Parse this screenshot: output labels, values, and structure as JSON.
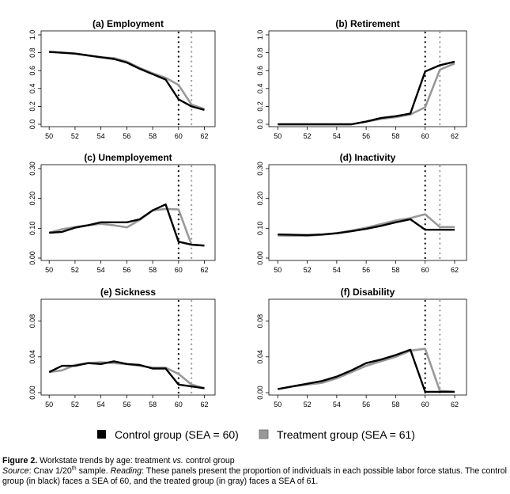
{
  "x_ticks": [
    "50",
    "52",
    "54",
    "56",
    "58",
    "60",
    "62"
  ],
  "colors": {
    "control": "#000000",
    "treatment": "#999999"
  },
  "legend": {
    "control_label": "Control group (SEA = 60)",
    "treatment_label": "Treatment group (SEA = 61)"
  },
  "caption": {
    "figure_label": "Figure 2.",
    "title_pre": "Workstate trends by age: treatment",
    "title_vs": "vs.",
    "title_post": "control group",
    "source_label": "Source",
    "source_pre": ": Cnav 1/20",
    "source_sup": "th",
    "source_post": "sample.",
    "reading_label": "Reading",
    "reading_text": ": These panels present the proportion of individuals in each possible labor force status. The control group (in black) faces a SEA of 60, and the treated group (in gray) faces a SEA of 61."
  },
  "chart_data": [
    {
      "type": "line",
      "title": "(a) Employment",
      "x": [
        50,
        51,
        52,
        53,
        54,
        55,
        56,
        57,
        58,
        59,
        60,
        61,
        62
      ],
      "ylim": [
        0,
        1
      ],
      "yticks": [
        "0.0",
        "0.2",
        "0.4",
        "0.6",
        "0.8",
        "1.0"
      ],
      "vlines": [
        60,
        61
      ],
      "series": [
        {
          "key": "control",
          "values": [
            0.81,
            0.8,
            0.79,
            0.77,
            0.75,
            0.73,
            0.69,
            0.62,
            0.56,
            0.5,
            0.28,
            0.2,
            0.16
          ]
        },
        {
          "key": "treatment",
          "values": [
            0.81,
            0.8,
            0.79,
            0.77,
            0.75,
            0.74,
            0.7,
            0.63,
            0.57,
            0.52,
            0.44,
            0.22,
            0.17
          ]
        }
      ]
    },
    {
      "type": "line",
      "title": "(b) Retirement",
      "x": [
        50,
        51,
        52,
        53,
        54,
        55,
        56,
        57,
        58,
        59,
        60,
        61,
        62
      ],
      "ylim": [
        0,
        1
      ],
      "yticks": [
        "0.0",
        "0.2",
        "0.4",
        "0.6",
        "0.8",
        "1.0"
      ],
      "vlines": [
        60,
        61
      ],
      "series": [
        {
          "key": "control",
          "values": [
            0.0,
            0.0,
            0.0,
            0.0,
            0.0,
            0.0,
            0.03,
            0.07,
            0.09,
            0.12,
            0.59,
            0.66,
            0.7
          ]
        },
        {
          "key": "treatment",
          "values": [
            0.0,
            0.0,
            0.0,
            0.0,
            0.0,
            0.0,
            0.03,
            0.06,
            0.08,
            0.11,
            0.19,
            0.61,
            0.68
          ]
        }
      ]
    },
    {
      "type": "line",
      "title": "(c) Unemployement",
      "x": [
        50,
        51,
        52,
        53,
        54,
        55,
        56,
        57,
        58,
        59,
        60,
        61,
        62
      ],
      "ylim": [
        0,
        0.3
      ],
      "yticks": [
        "0.00",
        "0.10",
        "0.20",
        "0.30"
      ],
      "vlines": [
        60,
        61
      ],
      "series": [
        {
          "key": "control",
          "values": [
            0.085,
            0.088,
            0.102,
            0.11,
            0.12,
            0.12,
            0.12,
            0.13,
            0.16,
            0.18,
            0.055,
            0.045,
            0.042
          ]
        },
        {
          "key": "treatment",
          "values": [
            0.085,
            0.097,
            0.104,
            0.11,
            0.115,
            0.11,
            0.103,
            0.128,
            0.16,
            0.165,
            0.163,
            0.045,
            0.042
          ]
        }
      ]
    },
    {
      "type": "line",
      "title": "(d) Inactivity",
      "x": [
        50,
        51,
        52,
        53,
        54,
        55,
        56,
        57,
        58,
        59,
        60,
        61,
        62
      ],
      "ylim": [
        0,
        0.3
      ],
      "yticks": [
        "0.00",
        "0.10",
        "0.20",
        "0.30"
      ],
      "vlines": [
        60,
        61
      ],
      "series": [
        {
          "key": "control",
          "values": [
            0.079,
            0.078,
            0.077,
            0.079,
            0.083,
            0.09,
            0.098,
            0.108,
            0.12,
            0.13,
            0.095,
            0.095,
            0.095
          ]
        },
        {
          "key": "treatment",
          "values": [
            0.076,
            0.075,
            0.075,
            0.078,
            0.084,
            0.092,
            0.102,
            0.114,
            0.126,
            0.134,
            0.147,
            0.104,
            0.104
          ]
        }
      ]
    },
    {
      "type": "line",
      "title": "(e) Sickness",
      "x": [
        50,
        51,
        52,
        53,
        54,
        55,
        56,
        57,
        58,
        59,
        60,
        61,
        62
      ],
      "ylim": [
        0,
        0.1
      ],
      "yticks": [
        "0.00",
        "0.04",
        "0.08"
      ],
      "vlines": [
        60,
        61
      ],
      "series": [
        {
          "key": "control",
          "values": [
            0.023,
            0.03,
            0.03,
            0.033,
            0.032,
            0.035,
            0.032,
            0.031,
            0.027,
            0.027,
            0.009,
            0.007,
            0.005
          ]
        },
        {
          "key": "treatment",
          "values": [
            0.023,
            0.025,
            0.031,
            0.033,
            0.034,
            0.033,
            0.032,
            0.03,
            0.028,
            0.028,
            0.021,
            0.009,
            0.005
          ]
        }
      ]
    },
    {
      "type": "line",
      "title": "(f) Disability",
      "x": [
        50,
        51,
        52,
        53,
        54,
        55,
        56,
        57,
        58,
        59,
        60,
        61,
        62
      ],
      "ylim": [
        0,
        0.1
      ],
      "yticks": [
        "0.00",
        "0.04",
        "0.08"
      ],
      "vlines": [
        60,
        61
      ],
      "series": [
        {
          "key": "control",
          "values": [
            0.004,
            0.007,
            0.01,
            0.013,
            0.018,
            0.025,
            0.033,
            0.037,
            0.042,
            0.048,
            0.001,
            0.001,
            0.001
          ]
        },
        {
          "key": "treatment",
          "values": [
            0.004,
            0.007,
            0.009,
            0.011,
            0.016,
            0.023,
            0.03,
            0.035,
            0.04,
            0.047,
            0.049,
            0.002,
            0.001
          ]
        }
      ]
    }
  ]
}
